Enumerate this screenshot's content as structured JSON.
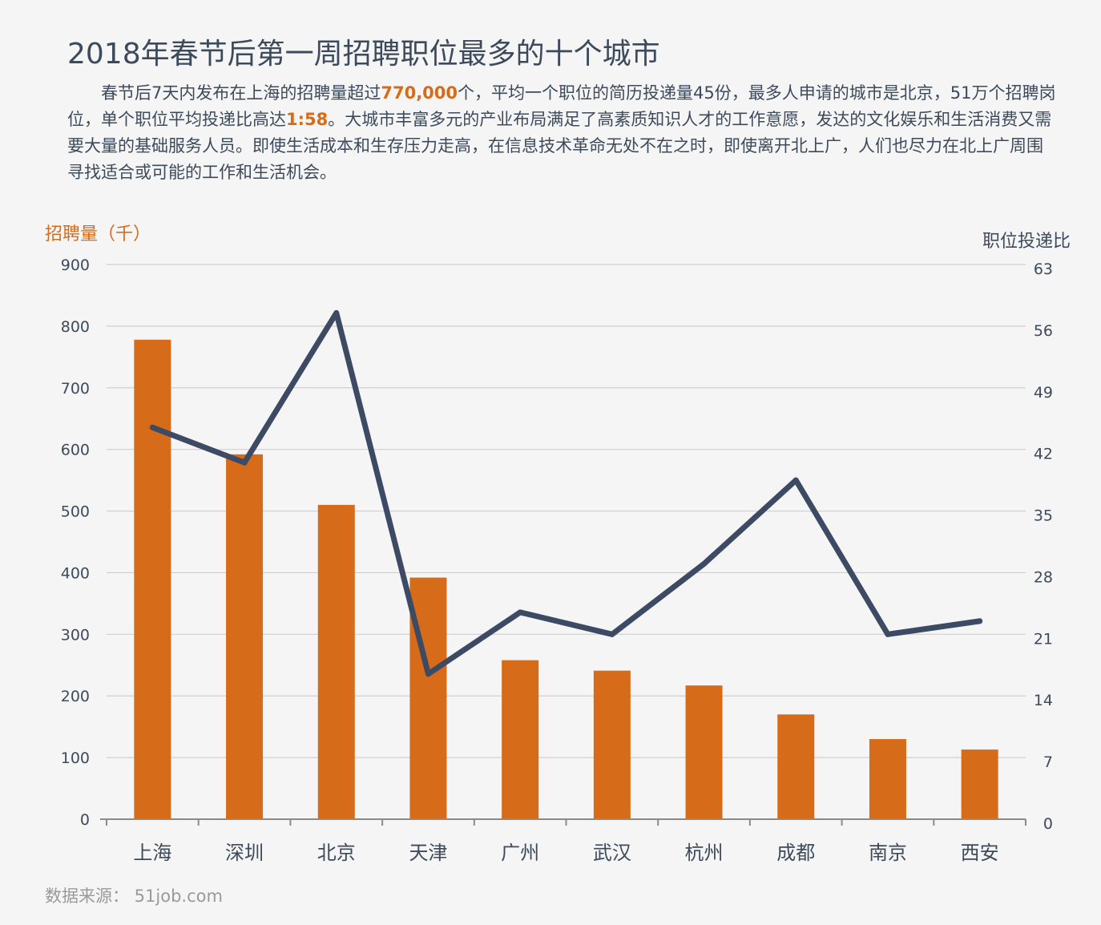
{
  "title": "2018年春节后第一周招聘职位最多的十个城市",
  "description": {
    "part1": "春节后7天内发布在上海的招聘量超过",
    "highlight1": "770,000",
    "part2": "个，平均一个职位的简历投递量45份，最多人申请的城市是北京，51万个招聘岗位，单个职位平均投递比高达",
    "highlight2": "1:58",
    "part3": "。大城市丰富多元的产业布局满足了高素质知识人才的工作意愿，发达的文化娱乐和生活消费又需要大量的基础服务人员。即使生活成本和生存压力走高，在信息技术革命无处不在之时，即使离开北上广，人们也尽力在北上广周围寻找适合或可能的工作和生活机会。"
  },
  "source": "数据来源： 51job.com",
  "colors": {
    "bar": "#d66c1a",
    "line": "#3d4a64",
    "grid": "#cfcfcf",
    "text": "#3d4a5c"
  },
  "chart_data": {
    "type": "bar",
    "categories": [
      "上海",
      "深圳",
      "北京",
      "天津",
      "广州",
      "武汉",
      "杭州",
      "成都",
      "南京",
      "西安"
    ],
    "left_axis_label": "招聘量（千）",
    "right_axis_label": "职位投递比",
    "left_ylim": [
      0,
      900
    ],
    "left_ticks": [
      0,
      100,
      200,
      300,
      400,
      500,
      600,
      700,
      800,
      900
    ],
    "right_ylim": [
      0,
      63
    ],
    "right_ticks": [
      0,
      7,
      14,
      21,
      28,
      35,
      42,
      49,
      56,
      63
    ],
    "grid": true,
    "series": [
      {
        "type": "bar",
        "axis": "left",
        "values": [
          778,
          592,
          510,
          392,
          258,
          241,
          217,
          170,
          130,
          113
        ]
      },
      {
        "type": "line",
        "axis": "right",
        "values": [
          44.5,
          40.5,
          57.5,
          16.5,
          23.5,
          21,
          29,
          38.5,
          21,
          22.5
        ]
      }
    ]
  }
}
